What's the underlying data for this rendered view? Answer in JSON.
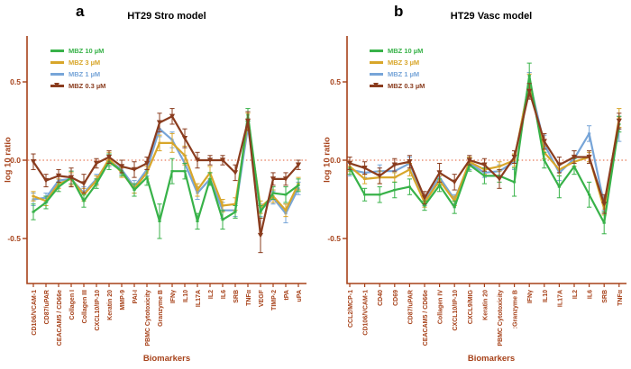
{
  "colors": {
    "axis": "#a64119",
    "zero_line": "#e05a30",
    "title": "#000000",
    "green": "#38b249",
    "orange": "#d8a62a",
    "blue": "#77a5d8",
    "brown": "#8a3c1e"
  },
  "chart_data": [
    {
      "type": "line",
      "panel_letter": "a",
      "title": "HT29 Stro model",
      "xlabel": "Biomarkers",
      "ylabel": "log 10 ratio",
      "ylim": [
        -0.8,
        0.85
      ],
      "yticks": [
        "0.5",
        "0.0",
        "-0.5"
      ],
      "ytick_values": [
        0.5,
        0.0,
        -0.5
      ],
      "zero_line": "dotted-red",
      "grid": false,
      "legend_position": "top-left",
      "error_bars": true,
      "categories": [
        "CD106/VCAM-1",
        "CD87/uPAR",
        "CEACAM5 / CD66e",
        "Collagen I",
        "Collagen III",
        "CXCL10/IP-10",
        "Keratin 20",
        "MMP-9",
        "PAI-I",
        "PBMC Cytotoxicity",
        "Granzyme B",
        "IFNγ",
        "IL10",
        "IL17A",
        "IL2",
        "IL6",
        "SRB",
        "TNFα",
        "VEGF",
        "TIMP-2",
        "tPA",
        "uPA"
      ],
      "series": [
        {
          "name": "MBZ 10 µM",
          "color": "#38b249",
          "marker": "dash",
          "values": [
            -0.33,
            -0.27,
            -0.17,
            -0.11,
            -0.26,
            -0.15,
            -0.01,
            -0.07,
            -0.19,
            -0.11,
            -0.39,
            -0.07,
            -0.07,
            -0.39,
            -0.12,
            -0.38,
            -0.33,
            0.29,
            -0.33,
            -0.21,
            -0.22,
            -0.16
          ],
          "errors": [
            0.05,
            0.04,
            0.03,
            0.04,
            0.04,
            0.03,
            0.05,
            0.03,
            0.04,
            0.05,
            0.11,
            0.08,
            0.05,
            0.05,
            0.04,
            0.06,
            0.04,
            0.04,
            0.04,
            0.04,
            0.05,
            0.04
          ]
        },
        {
          "name": "MBZ 3 µM",
          "color": "#d8a62a",
          "marker": "dash",
          "values": [
            -0.23,
            -0.26,
            -0.15,
            -0.12,
            -0.22,
            -0.13,
            0.01,
            -0.08,
            -0.18,
            -0.08,
            0.11,
            0.11,
            0.03,
            -0.19,
            -0.08,
            -0.29,
            -0.28,
            0.25,
            -0.3,
            -0.23,
            -0.32,
            -0.15
          ],
          "errors": [
            0.03,
            0.03,
            0.03,
            0.04,
            0.04,
            0.03,
            0.04,
            0.03,
            0.03,
            0.04,
            0.05,
            0.06,
            0.06,
            0.04,
            0.04,
            0.04,
            0.04,
            0.05,
            0.04,
            0.04,
            0.04,
            0.04
          ]
        },
        {
          "name": "MBZ 1 µM",
          "color": "#77a5d8",
          "marker": "dash",
          "values": [
            -0.25,
            -0.24,
            -0.13,
            -0.12,
            -0.21,
            -0.12,
            0.0,
            -0.06,
            -0.17,
            -0.06,
            0.2,
            0.13,
            -0.02,
            -0.21,
            -0.12,
            -0.32,
            -0.32,
            0.21,
            -0.32,
            -0.24,
            -0.34,
            -0.18
          ],
          "errors": [
            0.04,
            0.03,
            0.03,
            0.05,
            0.04,
            0.03,
            0.04,
            0.03,
            0.04,
            0.04,
            0.05,
            0.05,
            0.05,
            0.04,
            0.04,
            0.05,
            0.04,
            0.04,
            0.04,
            0.04,
            0.06,
            0.04
          ]
        },
        {
          "name": "MBZ 0.3 µM",
          "color": "#8a3c1e",
          "marker": "triangle-down",
          "values": [
            -0.01,
            -0.13,
            -0.1,
            -0.11,
            -0.15,
            -0.02,
            0.02,
            -0.04,
            -0.06,
            -0.02,
            0.24,
            0.28,
            0.14,
            0.0,
            0.0,
            0.0,
            -0.08,
            0.25,
            -0.48,
            -0.12,
            -0.12,
            -0.03
          ],
          "errors": [
            0.05,
            0.04,
            0.04,
            0.06,
            0.06,
            0.03,
            0.04,
            0.04,
            0.05,
            0.04,
            0.06,
            0.05,
            0.06,
            0.05,
            0.03,
            0.03,
            0.05,
            0.06,
            0.11,
            0.04,
            0.04,
            0.03
          ]
        }
      ]
    },
    {
      "type": "line",
      "panel_letter": "b",
      "title": "HT29 Vasc model",
      "xlabel": "Biomarkers",
      "ylabel": "log 10 ratio",
      "ylim": [
        -0.8,
        0.85
      ],
      "yticks": [
        "0.5",
        "0.0",
        "-0.5"
      ],
      "ytick_values": [
        0.5,
        0.0,
        -0.5
      ],
      "zero_line": "dotted-red",
      "grid": false,
      "legend_position": "top-left",
      "error_bars": true,
      "categories": [
        "CCL2/MCP-1",
        "CD106/VCAM-1",
        "CD40",
        "CD69",
        "CD87/uPAR",
        "CEACAM5 / CD66e",
        "Collagen IV",
        "CXCL10/IP-10",
        "CXCL9/MIG",
        "Keratin 20",
        "PBMC Cytotoxicity",
        ":Granzyme B",
        "IFNγ",
        "IL10",
        "IL17A",
        "IL2",
        "IL6",
        "SRB",
        "TNFα"
      ],
      "series": [
        {
          "name": "MBZ 10 µM",
          "color": "#38b249",
          "marker": "dash",
          "values": [
            -0.05,
            -0.22,
            -0.22,
            -0.19,
            -0.17,
            -0.29,
            -0.16,
            -0.3,
            -0.03,
            -0.1,
            -0.1,
            -0.14,
            0.54,
            0.0,
            -0.17,
            -0.04,
            -0.22,
            -0.4,
            0.23
          ],
          "errors": [
            0.04,
            0.04,
            0.05,
            0.05,
            0.05,
            0.03,
            0.04,
            0.04,
            0.04,
            0.05,
            0.04,
            0.09,
            0.08,
            0.05,
            0.07,
            0.05,
            0.08,
            0.07,
            0.05
          ]
        },
        {
          "name": "MBZ 3 µM",
          "color": "#d8a62a",
          "marker": "dash",
          "values": [
            -0.04,
            -0.12,
            -0.11,
            -0.11,
            -0.06,
            -0.27,
            -0.13,
            -0.26,
            -0.01,
            -0.06,
            -0.04,
            0.0,
            0.5,
            0.05,
            -0.06,
            -0.01,
            0.02,
            -0.31,
            0.27
          ],
          "errors": [
            0.03,
            0.03,
            0.04,
            0.03,
            0.04,
            0.03,
            0.03,
            0.03,
            0.03,
            0.03,
            0.03,
            0.04,
            0.05,
            0.04,
            0.04,
            0.03,
            0.03,
            0.04,
            0.06
          ]
        },
        {
          "name": "MBZ 1 µM",
          "color": "#77a5d8",
          "marker": "dash",
          "values": [
            -0.06,
            -0.08,
            -0.07,
            -0.07,
            -0.02,
            -0.26,
            -0.11,
            -0.25,
            -0.02,
            -0.08,
            -0.07,
            -0.01,
            0.51,
            0.1,
            -0.08,
            0.01,
            0.17,
            -0.28,
            0.2
          ],
          "errors": [
            0.04,
            0.03,
            0.04,
            0.04,
            0.04,
            0.03,
            0.04,
            0.03,
            0.04,
            0.03,
            0.04,
            0.05,
            0.05,
            0.06,
            0.05,
            0.05,
            0.05,
            0.04,
            0.08
          ]
        },
        {
          "name": "MBZ 0.3 µM",
          "color": "#8a3c1e",
          "marker": "triangle-down",
          "values": [
            -0.02,
            -0.05,
            -0.1,
            -0.03,
            -0.01,
            -0.24,
            -0.08,
            -0.14,
            0.0,
            -0.03,
            -0.12,
            0.02,
            0.44,
            0.12,
            -0.03,
            0.02,
            0.02,
            -0.28,
            0.25
          ],
          "errors": [
            0.04,
            0.04,
            0.05,
            0.04,
            0.04,
            0.04,
            0.06,
            0.05,
            0.03,
            0.04,
            0.06,
            0.04,
            0.05,
            0.05,
            0.05,
            0.04,
            0.04,
            0.06,
            0.05
          ]
        }
      ]
    }
  ]
}
